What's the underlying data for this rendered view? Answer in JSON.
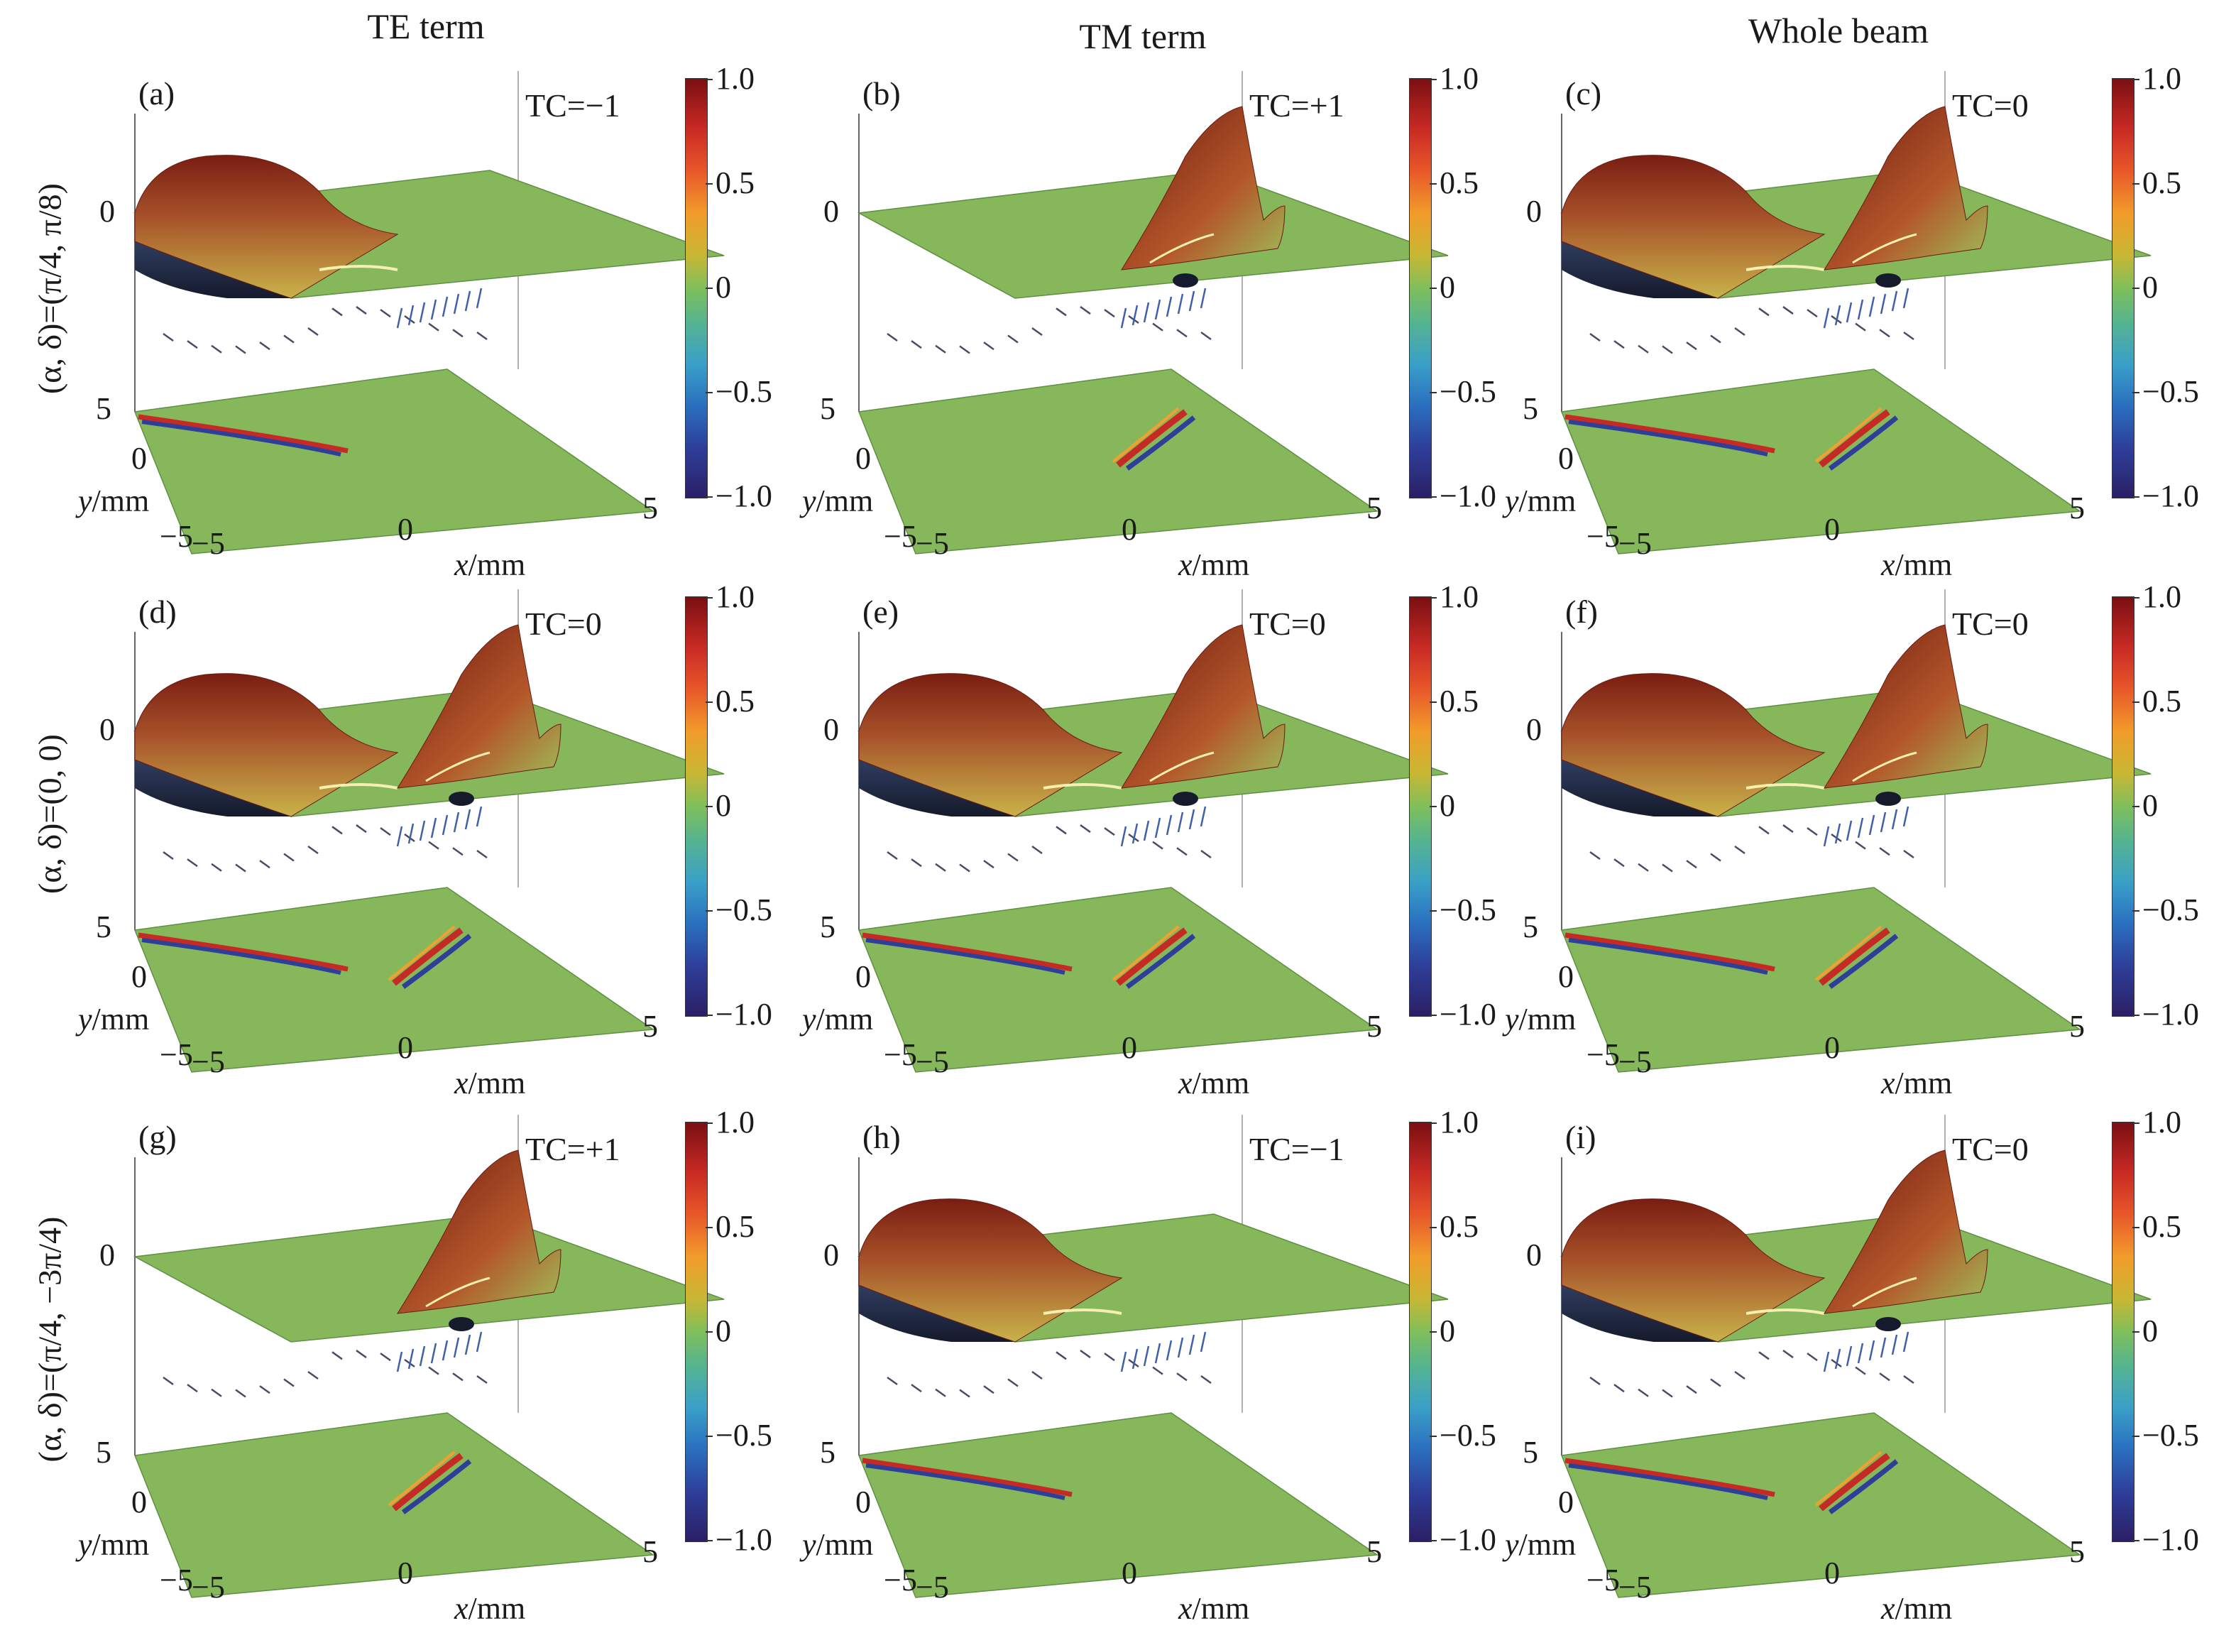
{
  "columns": [
    "TE term",
    "TM term",
    "Whole beam"
  ],
  "rows": [
    "(α, δ)=(π/4, π/8)",
    "(α, δ)=(0, 0)",
    "(α, δ)=(π/4, −3π/4)"
  ],
  "panels": [
    {
      "label": "(a)",
      "tc": "TC=−1"
    },
    {
      "label": "(b)",
      "tc": "TC=+1"
    },
    {
      "label": "(c)",
      "tc": "TC=0"
    },
    {
      "label": "(d)",
      "tc": "TC=0"
    },
    {
      "label": "(e)",
      "tc": "TC=0"
    },
    {
      "label": "(f)",
      "tc": "TC=0"
    },
    {
      "label": "(g)",
      "tc": "TC=+1"
    },
    {
      "label": "(h)",
      "tc": "TC=−1"
    },
    {
      "label": "(i)",
      "tc": "TC=0"
    }
  ],
  "axes": {
    "x_label": "x/mm",
    "y_label": "y/mm",
    "x_ticks": [
      "−5",
      "0",
      "5"
    ],
    "y_ticks": [
      "5",
      "0",
      "−5"
    ],
    "z_tick": "0"
  },
  "colorbar": {
    "ticks": [
      "1.0",
      "0.5",
      "0",
      "−0.5",
      "−1.0"
    ],
    "colors": [
      "#7a0f12",
      "#c92a24",
      "#f29b2b",
      "#7fbf5a",
      "#3aa0c8",
      "#2e3f9a",
      "#2b1f66"
    ]
  },
  "surface_color": "#86b85b"
}
